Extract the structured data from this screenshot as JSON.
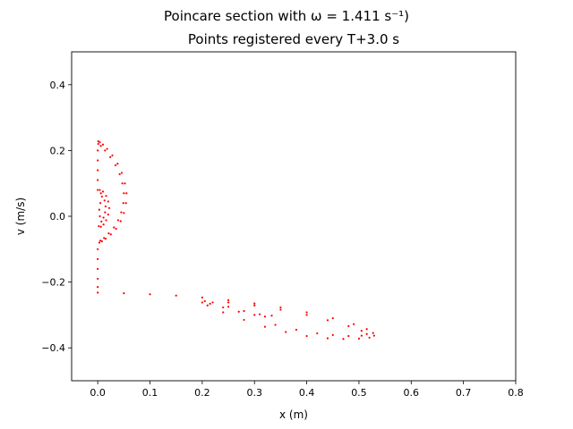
{
  "chart_data": {
    "type": "scatter",
    "suptitle": "Poincare section with ω = 1.411 s⁻¹)",
    "title": "Points registered every T+3.0 s",
    "xlabel": "x (m)",
    "ylabel": "v (m/s)",
    "xlim": [
      -0.05,
      0.8
    ],
    "ylim": [
      -0.5,
      0.5
    ],
    "xticks": [
      0.0,
      0.1,
      0.2,
      0.3,
      0.4,
      0.5,
      0.6,
      0.7,
      0.8
    ],
    "xtick_labels": [
      "0.0",
      "0.1",
      "0.2",
      "0.3",
      "0.4",
      "0.5",
      "0.6",
      "0.7",
      "0.8"
    ],
    "yticks": [
      -0.4,
      -0.2,
      0.0,
      0.2,
      0.4
    ],
    "ytick_labels": [
      "−0.4",
      "−0.2",
      "0.0",
      "0.2",
      "0.4"
    ],
    "grid": false,
    "marker_color": "#ff0000",
    "series": [
      {
        "points": [
          [
            0.001,
            0.228
          ],
          [
            0.004,
            0.225
          ],
          [
            0.01,
            0.218
          ],
          [
            0.018,
            0.205
          ],
          [
            0.028,
            0.185
          ],
          [
            0.038,
            0.16
          ],
          [
            0.046,
            0.132
          ],
          [
            0.052,
            0.1
          ],
          [
            0.055,
            0.07
          ],
          [
            0.054,
            0.04
          ],
          [
            0.05,
            0.01
          ],
          [
            0.044,
            -0.015
          ],
          [
            0.035,
            -0.038
          ],
          [
            0.025,
            -0.055
          ],
          [
            0.015,
            -0.068
          ],
          [
            0.008,
            -0.076
          ],
          [
            0.003,
            -0.08
          ],
          [
            0.001,
            0.22
          ],
          [
            0.006,
            0.214
          ],
          [
            0.014,
            0.2
          ],
          [
            0.024,
            0.18
          ],
          [
            0.034,
            0.155
          ],
          [
            0.042,
            0.128
          ],
          [
            0.047,
            0.1
          ],
          [
            0.05,
            0.07
          ],
          [
            0.049,
            0.04
          ],
          [
            0.045,
            0.012
          ],
          [
            0.039,
            -0.012
          ],
          [
            0.031,
            -0.034
          ],
          [
            0.021,
            -0.052
          ],
          [
            0.012,
            -0.066
          ],
          [
            0.005,
            -0.074
          ],
          [
            0.004,
            0.08
          ],
          [
            0.01,
            0.075
          ],
          [
            0.016,
            0.062
          ],
          [
            0.02,
            0.045
          ],
          [
            0.022,
            0.025
          ],
          [
            0.02,
            0.005
          ],
          [
            0.016,
            -0.012
          ],
          [
            0.011,
            -0.025
          ],
          [
            0.006,
            -0.032
          ],
          [
            0.002,
            -0.03
          ],
          [
            0.008,
            0.06
          ],
          [
            0.013,
            0.048
          ],
          [
            0.015,
            0.03
          ],
          [
            0.014,
            0.012
          ],
          [
            0.011,
            -0.004
          ],
          [
            0.007,
            -0.016
          ],
          [
            0.004,
            0.0
          ],
          [
            0.003,
            0.02
          ],
          [
            0.005,
            0.04
          ],
          [
            0.006,
            0.07
          ],
          [
            0.0,
            0.2
          ],
          [
            0.0,
            0.17
          ],
          [
            0.0,
            0.14
          ],
          [
            0.0,
            0.11
          ],
          [
            0.0,
            0.08
          ],
          [
            0.0,
            -0.1
          ],
          [
            0.0,
            -0.13
          ],
          [
            0.0,
            -0.16
          ],
          [
            0.0,
            -0.19
          ],
          [
            0.0,
            -0.215
          ],
          [
            0.0,
            -0.232
          ],
          [
            0.05,
            -0.234
          ],
          [
            0.1,
            -0.237
          ],
          [
            0.15,
            -0.241
          ],
          [
            0.2,
            -0.247
          ],
          [
            0.25,
            -0.255
          ],
          [
            0.3,
            -0.265
          ],
          [
            0.35,
            -0.277
          ],
          [
            0.4,
            -0.292
          ],
          [
            0.45,
            -0.31
          ],
          [
            0.49,
            -0.328
          ],
          [
            0.515,
            -0.343
          ],
          [
            0.527,
            -0.355
          ],
          [
            0.529,
            -0.363
          ],
          [
            0.52,
            -0.369
          ],
          [
            0.5,
            -0.372
          ],
          [
            0.47,
            -0.373
          ],
          [
            0.44,
            -0.371
          ],
          [
            0.4,
            -0.364
          ],
          [
            0.36,
            -0.352
          ],
          [
            0.32,
            -0.336
          ],
          [
            0.28,
            -0.315
          ],
          [
            0.24,
            -0.292
          ],
          [
            0.21,
            -0.271
          ],
          [
            0.2,
            -0.262
          ],
          [
            0.205,
            -0.258
          ],
          [
            0.22,
            -0.262
          ],
          [
            0.25,
            -0.275
          ],
          [
            0.28,
            -0.288
          ],
          [
            0.31,
            -0.298
          ],
          [
            0.333,
            -0.302
          ],
          [
            0.32,
            -0.305
          ],
          [
            0.3,
            -0.3
          ],
          [
            0.27,
            -0.29
          ],
          [
            0.24,
            -0.277
          ],
          [
            0.215,
            -0.266
          ],
          [
            0.25,
            -0.262
          ],
          [
            0.3,
            -0.271
          ],
          [
            0.35,
            -0.284
          ],
          [
            0.4,
            -0.3
          ],
          [
            0.44,
            -0.316
          ],
          [
            0.48,
            -0.334
          ],
          [
            0.505,
            -0.348
          ],
          [
            0.515,
            -0.358
          ],
          [
            0.505,
            -0.363
          ],
          [
            0.48,
            -0.364
          ],
          [
            0.45,
            -0.361
          ],
          [
            0.42,
            -0.356
          ],
          [
            0.38,
            -0.345
          ],
          [
            0.34,
            -0.33
          ]
        ]
      }
    ]
  }
}
